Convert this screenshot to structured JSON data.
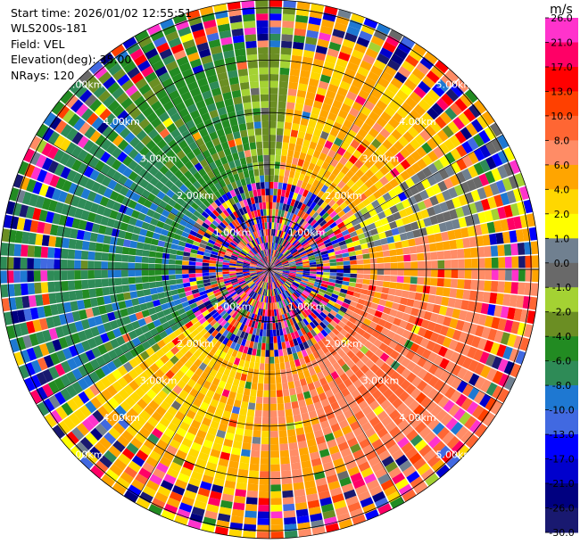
{
  "info": {
    "start_time": "Start time: 2026/01/02 12:55:51",
    "station": "WLS200s-181",
    "field": "Field: VEL",
    "elevation": "Elevation(deg): 35.00",
    "nrays": "NRays: 120"
  },
  "chart_data": {
    "type": "heatmap",
    "projection": "polar-ppi",
    "n_rays": 120,
    "range_rings_km": [
      1.0,
      2.0,
      3.0,
      4.0,
      5.0
    ],
    "range_labels": [
      "1.00km",
      "2.00km",
      "3.00km",
      "4.00km",
      "5.00km"
    ],
    "max_range_km": 5.15,
    "grid": true,
    "colorbar": {
      "unit": "m/s",
      "ticks": [
        "26.0",
        "21.0",
        "17.0",
        "13.0",
        "10.0",
        "8.0",
        "6.0",
        "4.0",
        "2.0",
        "1.0",
        "0.0",
        "-1.0",
        "-2.0",
        "-4.0",
        "-6.0",
        "-8.0",
        "-10.0",
        "-13.0",
        "-17.0",
        "-21.0",
        "-26.0",
        "-30.0"
      ],
      "colors": [
        "#ff33cc",
        "#ff0066",
        "#ff0000",
        "#ff4000",
        "#ff6633",
        "#ff8c66",
        "#ffa500",
        "#ffd700",
        "#ffff00",
        "#708090",
        "#696969",
        "#a4d233",
        "#6b8e23",
        "#228b22",
        "#2e8b57",
        "#1e78d2",
        "#4169e1",
        "#0000ff",
        "#0000cd",
        "#000080",
        "#191970"
      ]
    },
    "field_pattern": "Radial velocity (m/s): central ~1.5 km region highly variable/noisy; outward flow (+2 to +10 m/s, yellow/orange) toward east and south; inward flow (-1 to -13 m/s, greens/blues) toward west and north-west; outer ring speckled."
  }
}
